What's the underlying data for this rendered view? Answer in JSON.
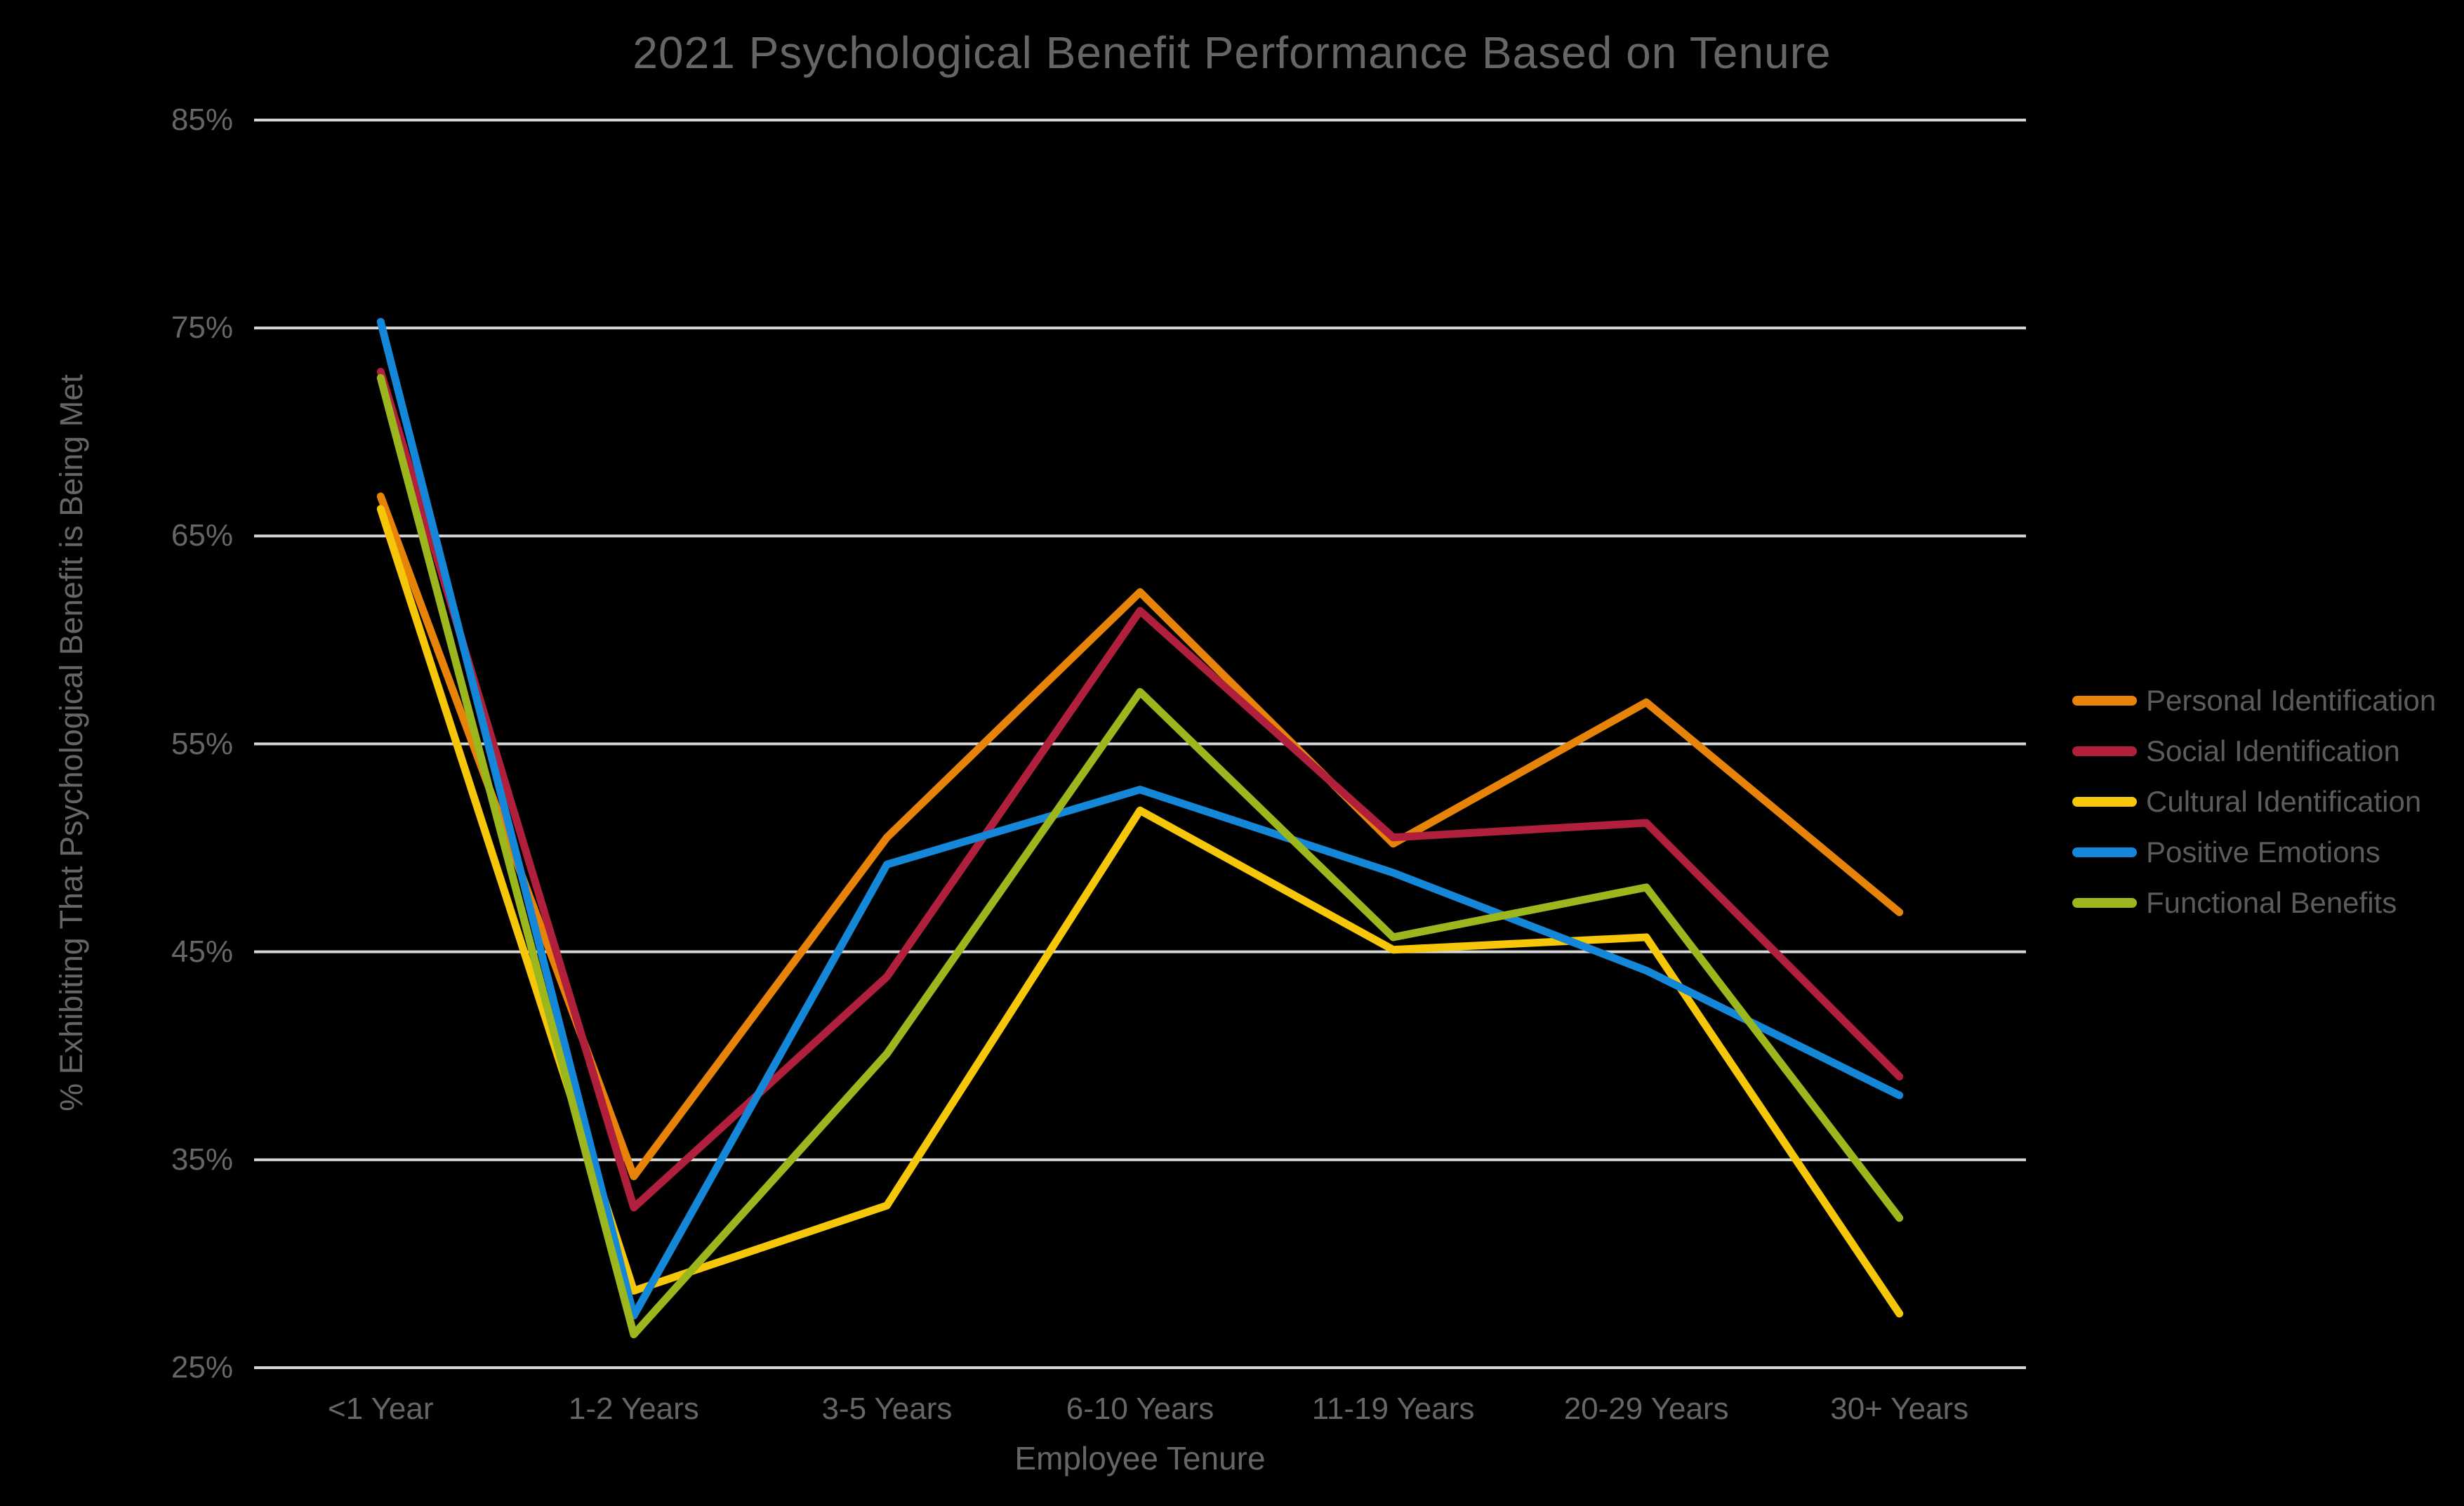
{
  "title": "2021 Psychological Benefit Performance Based on Tenure",
  "chart_data": {
    "type": "line",
    "title": "2021 Psychological Benefit Performance Based on Tenure",
    "xlabel": "Employee Tenure",
    "ylabel": "% Exhibiting That Psychological Benefit is Being Met",
    "categories": [
      "<1 Year",
      "1-2 Years",
      "3-5 Years",
      "6-10 Years",
      "11-19 Years",
      "20-29 Years",
      "30+ Years"
    ],
    "series": [
      {
        "name": "Personal Identification",
        "color": "#e8830a",
        "values": [
          66.9,
          34.2,
          50.5,
          62.3,
          50.2,
          57.0,
          46.9
        ]
      },
      {
        "name": "Social Identification",
        "color": "#b01f3b",
        "values": [
          72.9,
          32.7,
          43.8,
          61.4,
          50.5,
          51.2,
          39.0
        ]
      },
      {
        "name": "Cultural Identification",
        "color": "#f6c608",
        "values": [
          66.3,
          28.7,
          32.8,
          51.8,
          45.1,
          45.7,
          27.6
        ]
      },
      {
        "name": "Positive Emotions",
        "color": "#1487d8",
        "values": [
          75.3,
          27.5,
          49.2,
          52.8,
          48.8,
          44.1,
          38.1
        ]
      },
      {
        "name": "Functional Benefits",
        "color": "#9bb71d",
        "values": [
          72.6,
          26.6,
          40.1,
          57.5,
          45.7,
          48.1,
          32.2
        ]
      }
    ],
    "ylim": [
      25,
      85
    ],
    "y_ticks": [
      {
        "value": 85,
        "label": "85%"
      },
      {
        "value": 75,
        "label": "75%"
      },
      {
        "value": 65,
        "label": "65%"
      },
      {
        "value": 55,
        "label": "55%"
      },
      {
        "value": 45,
        "label": "45%"
      },
      {
        "value": 35,
        "label": "35%"
      },
      {
        "value": 25,
        "label": "25%"
      }
    ],
    "grid": "horizontal",
    "legend_position": "right",
    "background_color": "#000000",
    "gridline_color": "#d6d6d6",
    "text_color": "#666666",
    "legend_text_color": "#5c5c5c"
  }
}
